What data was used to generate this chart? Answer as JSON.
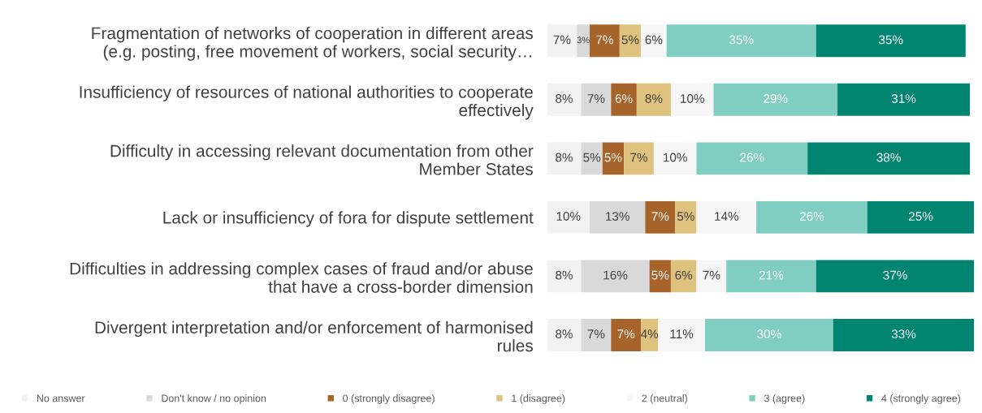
{
  "chart_data": {
    "type": "bar",
    "orientation": "horizontal",
    "stacked": true,
    "xlim": [
      0,
      100
    ],
    "tick_labels": false,
    "grid": false,
    "legend": "bottom",
    "categories": [
      "Fragmentation of networks of cooperation in different areas\n(e.g. posting, free movement of workers, social security…",
      "Insufficiency of resources of national authorities to cooperate\neffectively",
      "Difficulty in accessing relevant documentation from other\nMember States",
      "Lack or insufficiency of fora for dispute settlement",
      "Difficulties in addressing complex cases of fraud and/or abuse\nthat have a cross-border dimension",
      "Divergent interpretation and/or enforcement of harmonised\nrules"
    ],
    "series": [
      {
        "name": "No answer",
        "color": "#f2f2f2",
        "values": [
          7,
          8,
          8,
          10,
          8,
          8
        ],
        "value_labels": [
          "7%",
          "8%",
          "8%",
          "10%",
          "8%",
          "8%"
        ]
      },
      {
        "name": "Don't know / no opinion",
        "color": "#d9d9d9",
        "values": [
          3,
          7,
          5,
          13,
          16,
          7
        ],
        "value_labels": [
          "3%",
          "7%",
          "5%",
          "13%",
          "16%",
          "7%"
        ]
      },
      {
        "name": "0 (strongly disagree)",
        "color": "#a6632a",
        "values": [
          7,
          6,
          5,
          7,
          5,
          7
        ],
        "value_labels": [
          "7%",
          "6%",
          "5%",
          "7%",
          "5%",
          "7%"
        ]
      },
      {
        "name": "1 (disagree)",
        "color": "#dfc27d",
        "values": [
          5,
          8,
          7,
          5,
          6,
          4
        ],
        "value_labels": [
          "5%",
          "8%",
          "7%",
          "5%",
          "6%",
          "4%"
        ]
      },
      {
        "name": "2 (neutral)",
        "color": "#f6f6f6",
        "values": [
          6,
          10,
          10,
          14,
          7,
          11
        ],
        "value_labels": [
          "6%",
          "10%",
          "10%",
          "14%",
          "7%",
          "11%"
        ]
      },
      {
        "name": "3 (agree)",
        "color": "#80cdc1",
        "values": [
          35,
          29,
          26,
          26,
          21,
          30
        ],
        "value_labels": [
          "35%",
          "29%",
          "26%",
          "26%",
          "21%",
          "30%"
        ]
      },
      {
        "name": "4 (strongly agree)",
        "color": "#018571",
        "values": [
          35,
          31,
          38,
          25,
          37,
          33
        ],
        "value_labels": [
          "35%",
          "31%",
          "38%",
          "25%",
          "37%",
          "33%"
        ]
      }
    ]
  }
}
